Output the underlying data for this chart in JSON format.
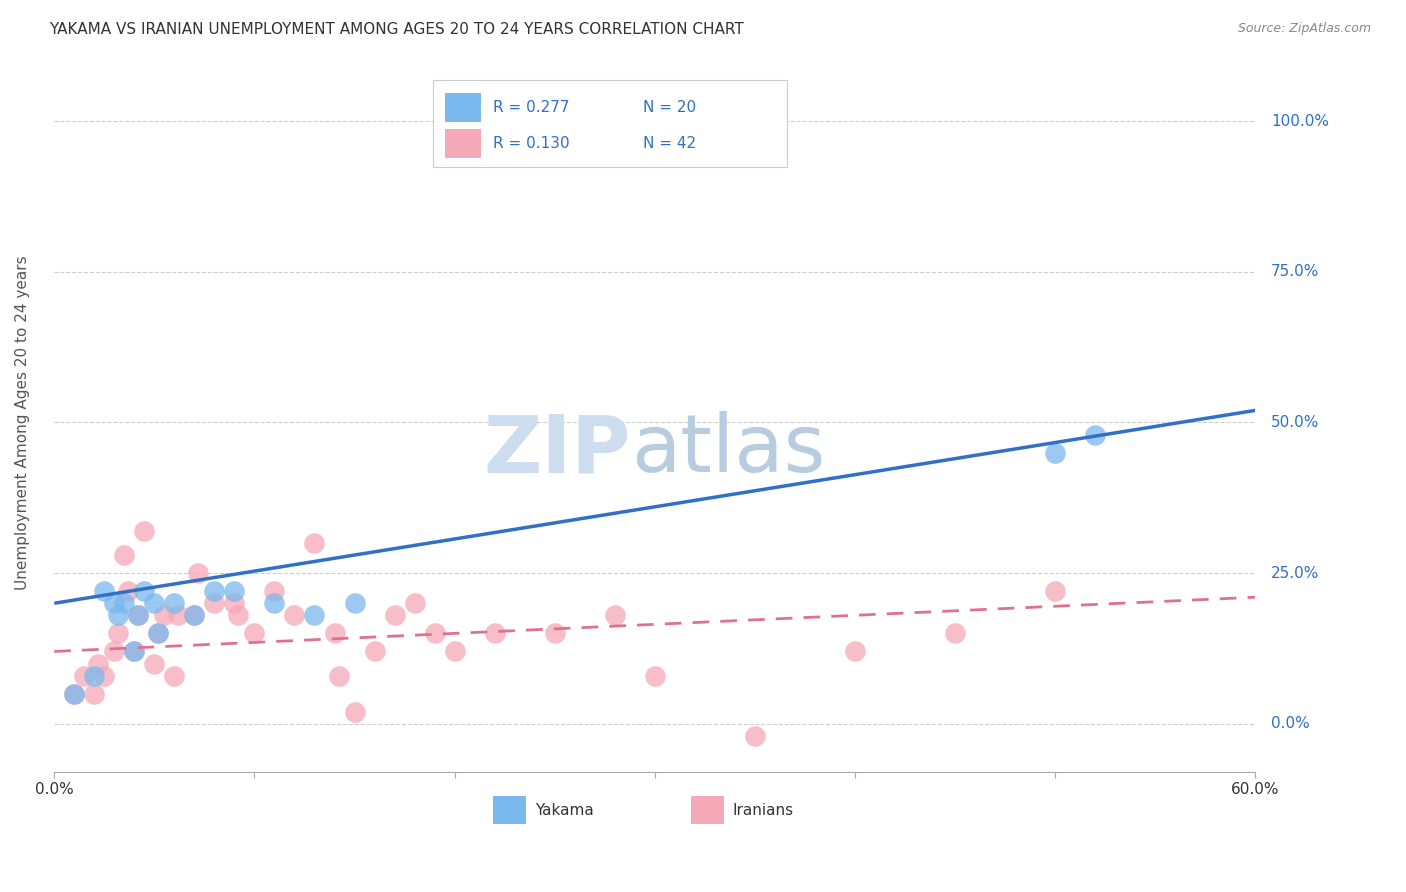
{
  "title": "YAKAMA VS IRANIAN UNEMPLOYMENT AMONG AGES 20 TO 24 YEARS CORRELATION CHART",
  "source": "Source: ZipAtlas.com",
  "ylabel": "Unemployment Among Ages 20 to 24 years",
  "ytick_labels": [
    "0.0%",
    "25.0%",
    "50.0%",
    "75.0%",
    "100.0%"
  ],
  "ytick_values": [
    0,
    25,
    50,
    75,
    100
  ],
  "xmin": 0,
  "xmax": 60,
  "ymin": -8,
  "ymax": 108,
  "legend_labels": [
    "Yakama",
    "Iranians"
  ],
  "legend_r": [
    "R = 0.277",
    "R = 0.130"
  ],
  "legend_n": [
    "N = 20",
    "N = 42"
  ],
  "yakama_color": "#7ab8ee",
  "iranian_color": "#f5a8b8",
  "yakama_line_color": "#3070c8",
  "iranian_line_color": "#e07090",
  "yakama_points_x": [
    1.0,
    2.0,
    2.5,
    3.0,
    3.2,
    3.5,
    4.0,
    4.2,
    4.5,
    5.0,
    5.2,
    6.0,
    7.0,
    8.0,
    9.0,
    11.0,
    13.0,
    15.0,
    50.0,
    52.0
  ],
  "yakama_points_y": [
    5.0,
    8.0,
    22.0,
    20.0,
    18.0,
    20.0,
    12.0,
    18.0,
    22.0,
    20.0,
    15.0,
    20.0,
    18.0,
    22.0,
    22.0,
    20.0,
    18.0,
    20.0,
    45.0,
    48.0
  ],
  "iranian_points_x": [
    1.0,
    1.5,
    2.0,
    2.2,
    2.5,
    3.0,
    3.2,
    3.5,
    3.7,
    4.0,
    4.2,
    4.5,
    5.0,
    5.2,
    5.5,
    6.0,
    6.2,
    7.0,
    7.2,
    8.0,
    9.0,
    9.2,
    10.0,
    11.0,
    12.0,
    13.0,
    14.0,
    14.2,
    15.0,
    16.0,
    17.0,
    18.0,
    19.0,
    20.0,
    22.0,
    25.0,
    28.0,
    30.0,
    35.0,
    40.0,
    45.0,
    50.0
  ],
  "iranian_points_y": [
    5.0,
    8.0,
    5.0,
    10.0,
    8.0,
    12.0,
    15.0,
    28.0,
    22.0,
    12.0,
    18.0,
    32.0,
    10.0,
    15.0,
    18.0,
    8.0,
    18.0,
    18.0,
    25.0,
    20.0,
    20.0,
    18.0,
    15.0,
    22.0,
    18.0,
    30.0,
    15.0,
    8.0,
    2.0,
    12.0,
    18.0,
    20.0,
    15.0,
    12.0,
    15.0,
    15.0,
    18.0,
    8.0,
    -2.0,
    12.0,
    15.0,
    22.0
  ],
  "yakama_line_x": [
    0,
    60
  ],
  "yakama_line_y": [
    20,
    52
  ],
  "iranian_line_x": [
    0,
    60
  ],
  "iranian_line_y": [
    12,
    21
  ]
}
